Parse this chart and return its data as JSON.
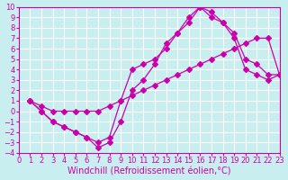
{
  "bg_color": "#c8eef0",
  "grid_color": "#ffffff",
  "line_color": "#cc00aa",
  "xlabel": "Windchill (Refroidissement éolien,°C)",
  "xlim": [
    0,
    23
  ],
  "ylim": [
    -4,
    10
  ],
  "xticks": [
    0,
    1,
    2,
    3,
    4,
    5,
    6,
    7,
    8,
    9,
    10,
    11,
    12,
    13,
    14,
    15,
    16,
    17,
    18,
    19,
    20,
    21,
    22,
    23
  ],
  "yticks": [
    -4,
    -3,
    -2,
    -1,
    0,
    1,
    2,
    3,
    4,
    5,
    6,
    7,
    8,
    9,
    10
  ],
  "curve1_x": [
    1,
    2,
    3,
    4,
    5,
    6,
    7,
    8,
    9,
    10,
    11,
    12,
    13,
    14,
    15,
    16,
    17,
    18,
    19,
    20,
    21,
    22,
    23
  ],
  "curve1_y": [
    1,
    0,
    -1,
    -1.5,
    -2,
    -2.5,
    -3.5,
    -3,
    -1,
    2,
    3,
    4.5,
    6.5,
    7.5,
    8.5,
    10,
    9.5,
    8.5,
    7,
    4,
    3.5,
    3,
    3.5
  ],
  "curve2_x": [
    1,
    2,
    3,
    4,
    5,
    6,
    7,
    8,
    9,
    10,
    11,
    12,
    13,
    14,
    15,
    16,
    17,
    18,
    19,
    20,
    21,
    22,
    23
  ],
  "curve2_y": [
    1,
    0.5,
    0,
    0,
    0,
    0,
    0,
    0.5,
    1,
    1.5,
    2,
    2.5,
    3,
    3.5,
    4,
    4.5,
    5,
    5.5,
    6,
    6.5,
    7,
    7,
    3.5
  ],
  "curve3_x": [
    1,
    2,
    3,
    4,
    5,
    6,
    7,
    8,
    9,
    10,
    11,
    12,
    13,
    14,
    15,
    16,
    17,
    18,
    19,
    20,
    21,
    22,
    23
  ],
  "curve3_y": [
    1,
    0,
    -1,
    -1.5,
    -2,
    -2.5,
    -3,
    -2.5,
    1,
    4,
    4.5,
    5,
    6,
    7.5,
    9,
    10,
    9,
    8.5,
    7.5,
    5,
    4.5,
    3.5,
    3.5
  ],
  "xlabel_fontsize": 7,
  "tick_fontsize": 6
}
